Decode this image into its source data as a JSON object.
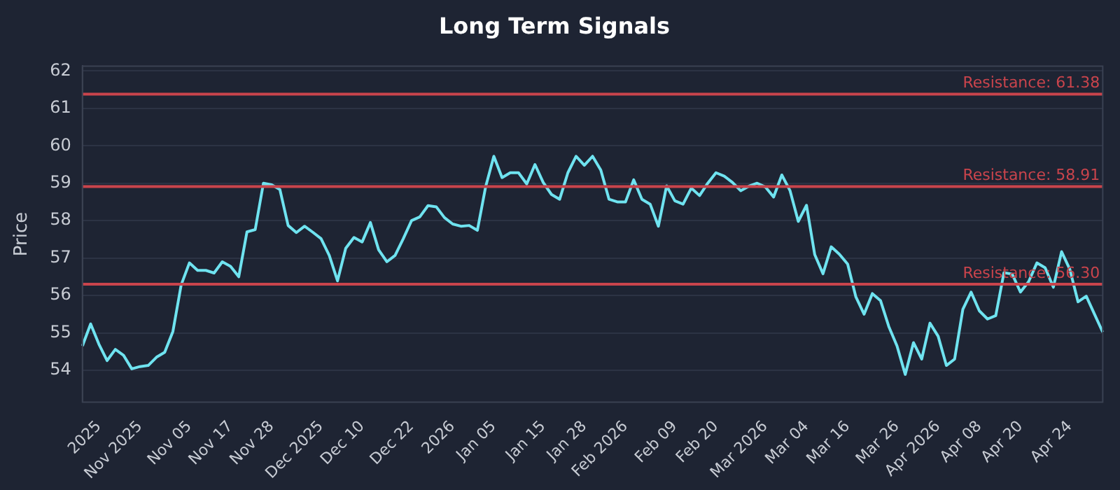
{
  "chart_data": {
    "type": "line",
    "title": "Long Term Signals",
    "ylabel": "Price",
    "categories": [
      null,
      null,
      "2025",
      null,
      null,
      null,
      null,
      "Nov 2025",
      null,
      null,
      null,
      null,
      null,
      "Nov 05",
      null,
      null,
      null,
      null,
      "Nov 17",
      null,
      null,
      null,
      null,
      "Nov 28",
      null,
      null,
      null,
      null,
      null,
      "Dec 2025",
      null,
      null,
      null,
      null,
      "Dec 10",
      null,
      null,
      null,
      null,
      null,
      "Dec 22",
      null,
      null,
      null,
      null,
      "2026",
      null,
      null,
      null,
      null,
      "Jan 05",
      null,
      null,
      null,
      null,
      null,
      "Jan 15",
      null,
      null,
      null,
      null,
      "Jan 28",
      null,
      null,
      null,
      null,
      "Feb 2026",
      null,
      null,
      null,
      null,
      null,
      "Feb 09",
      null,
      null,
      null,
      null,
      "Feb 20",
      null,
      null,
      null,
      null,
      null,
      "Mar 2026",
      null,
      null,
      null,
      null,
      "Mar 04",
      null,
      null,
      null,
      null,
      "Mar 16",
      null,
      null,
      null,
      null,
      null,
      "Mar 26",
      null,
      null,
      null,
      null,
      "Apr 2026",
      null,
      null,
      null,
      null,
      "Apr 08",
      null,
      null,
      null,
      null,
      "Apr 20",
      null,
      null,
      null,
      null,
      null,
      "Apr 24",
      null,
      null,
      null,
      null
    ],
    "series": [
      {
        "color": "#6fe3f0",
        "values": [
          54.65,
          55.24,
          54.7,
          54.26,
          54.56,
          54.4,
          54.04,
          54.1,
          54.13,
          54.35,
          54.48,
          55.04,
          56.28,
          56.87,
          56.67,
          56.67,
          56.6,
          56.9,
          56.78,
          56.5,
          57.7,
          57.76,
          59.0,
          58.96,
          58.83,
          57.87,
          57.68,
          57.85,
          57.69,
          57.52,
          57.07,
          56.39,
          57.26,
          57.55,
          57.43,
          57.95,
          57.22,
          56.9,
          57.07,
          57.52,
          58.0,
          58.1,
          58.4,
          58.37,
          58.08,
          57.91,
          57.85,
          57.87,
          57.74,
          58.9,
          59.72,
          59.15,
          59.28,
          59.28,
          58.98,
          59.5,
          59.02,
          58.7,
          58.57,
          59.28,
          59.72,
          59.48,
          59.72,
          59.35,
          58.57,
          58.5,
          58.5,
          59.09,
          58.57,
          58.44,
          57.85,
          58.93,
          58.53,
          58.44,
          58.87,
          58.67,
          59.0,
          59.28,
          59.19,
          59.02,
          58.8,
          58.92,
          59.0,
          58.9,
          58.63,
          59.22,
          58.8,
          57.98,
          58.41,
          57.09,
          56.58,
          57.3,
          57.1,
          56.84,
          55.96,
          55.5,
          56.05,
          55.86,
          55.17,
          54.65,
          53.89,
          54.74,
          54.3,
          55.26,
          54.91,
          54.13,
          54.3,
          55.63,
          56.09,
          55.59,
          55.37,
          55.46,
          56.61,
          56.57,
          56.09,
          56.37,
          56.87,
          56.74,
          56.22,
          57.17,
          56.7,
          55.83,
          55.98,
          55.5,
          55.02
        ]
      }
    ],
    "ylim": [
      53.15,
      62.13
    ],
    "yticks": [
      54,
      55,
      56,
      57,
      58,
      59,
      60,
      61,
      62
    ],
    "grid": "y",
    "legend": false,
    "marker": "none",
    "line_style": "solid",
    "ref_lines": [
      {
        "axis": "y",
        "value": 61.38,
        "label": "Resistance: 61.38",
        "color": "#c9444c"
      },
      {
        "axis": "y",
        "value": 58.91,
        "label": "Resistance: 58.91",
        "color": "#c9444c"
      },
      {
        "axis": "y",
        "value": 56.3,
        "label": "Resistance: 56.30",
        "color": "#c9444c"
      }
    ]
  }
}
